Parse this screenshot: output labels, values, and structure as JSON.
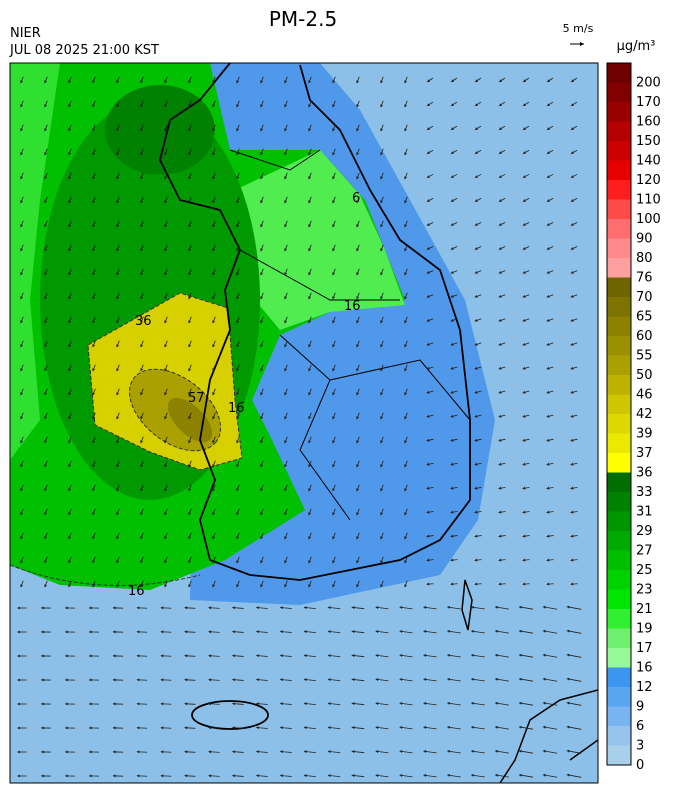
{
  "header": {
    "title": "PM-2.5",
    "source": "NIER",
    "datetime": "JUL 08 2025 21:00 KST",
    "wind_scale": "5 m/s"
  },
  "legend": {
    "unit": "μg/m³",
    "levels": [
      {
        "value": 200,
        "color": "#6e0000"
      },
      {
        "value": 170,
        "color": "#820000"
      },
      {
        "value": 160,
        "color": "#9a0000"
      },
      {
        "value": 150,
        "color": "#b40000"
      },
      {
        "value": 140,
        "color": "#cc0000"
      },
      {
        "value": 120,
        "color": "#e60000"
      },
      {
        "value": 110,
        "color": "#ff1e1e"
      },
      {
        "value": 100,
        "color": "#ff4a4a"
      },
      {
        "value": 90,
        "color": "#ff6e6e"
      },
      {
        "value": 80,
        "color": "#ff8a8a"
      },
      {
        "value": 76,
        "color": "#ffa0a0"
      },
      {
        "value": 70,
        "color": "#6e6400"
      },
      {
        "value": 65,
        "color": "#7d7300"
      },
      {
        "value": 60,
        "color": "#8c8200"
      },
      {
        "value": 55,
        "color": "#9b9100"
      },
      {
        "value": 50,
        "color": "#aaa000"
      },
      {
        "value": 46,
        "color": "#bcb200"
      },
      {
        "value": 42,
        "color": "#cec600"
      },
      {
        "value": 39,
        "color": "#dcd800"
      },
      {
        "value": 37,
        "color": "#eaea00"
      },
      {
        "value": 36,
        "color": "#ffff00"
      },
      {
        "value": 33,
        "color": "#006e00"
      },
      {
        "value": 31,
        "color": "#008200"
      },
      {
        "value": 29,
        "color": "#009600"
      },
      {
        "value": 27,
        "color": "#00aa00"
      },
      {
        "value": 25,
        "color": "#00be00"
      },
      {
        "value": 23,
        "color": "#00d200"
      },
      {
        "value": 21,
        "color": "#00e600"
      },
      {
        "value": 19,
        "color": "#30f030"
      },
      {
        "value": 17,
        "color": "#6ef06e"
      },
      {
        "value": 16,
        "color": "#96fa96"
      },
      {
        "value": 12,
        "color": "#3c96f0"
      },
      {
        "value": 9,
        "color": "#5aa5f0"
      },
      {
        "value": 6,
        "color": "#78b4f0"
      },
      {
        "value": 3,
        "color": "#96c3eb"
      },
      {
        "value": 0,
        "color": "#a8d0e8"
      }
    ]
  },
  "contour_labels": [
    "36",
    "57",
    "16",
    "16",
    "16",
    "6"
  ]
}
